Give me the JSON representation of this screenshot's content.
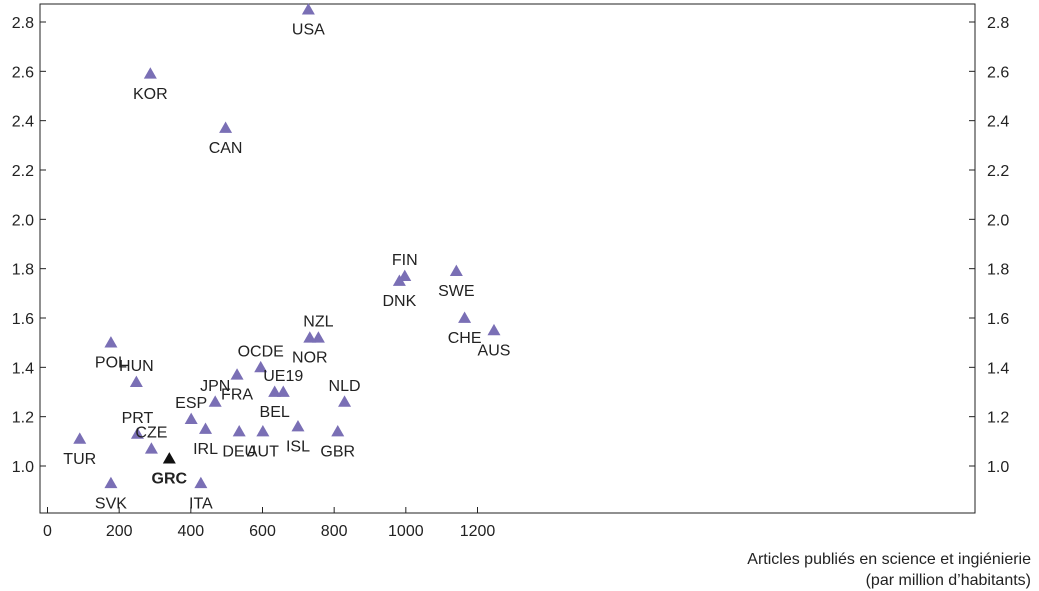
{
  "chart_data": {
    "type": "scatter",
    "xlabel": [
      "Articles publiés en science et ingiénierie",
      "(par million d’habitants)"
    ],
    "ylabel": "",
    "xlim": [
      0,
      1290
    ],
    "ylim": [
      0.8,
      2.9
    ],
    "xticks": [
      "0",
      "200",
      "400",
      "600",
      "800",
      "1000",
      "1200"
    ],
    "yticks": [
      "1.0",
      "1.2",
      "1.4",
      "1.6",
      "1.8",
      "2.0",
      "2.2",
      "2.4",
      "2.6",
      "2.8"
    ],
    "grid": false,
    "colors": {
      "default": "#7a6fb5",
      "highlight": "#111111"
    },
    "points": [
      {
        "label": "USA",
        "x": 728,
        "y": 2.85,
        "pos": "below"
      },
      {
        "label": "KOR",
        "x": 287,
        "y": 2.59,
        "pos": "below"
      },
      {
        "label": "CAN",
        "x": 497,
        "y": 2.37,
        "pos": "below"
      },
      {
        "label": "FIN",
        "x": 997,
        "y": 1.77,
        "pos": "above"
      },
      {
        "label": "DNK",
        "x": 982,
        "y": 1.75,
        "pos": "below"
      },
      {
        "label": "SWE",
        "x": 1141,
        "y": 1.79,
        "pos": "below"
      },
      {
        "label": "CHE",
        "x": 1164,
        "y": 1.6,
        "pos": "below"
      },
      {
        "label": "AUS",
        "x": 1246,
        "y": 1.55,
        "pos": "below"
      },
      {
        "label": "NZL",
        "x": 756,
        "y": 1.52,
        "pos": "above"
      },
      {
        "label": "NOR",
        "x": 732,
        "y": 1.52,
        "pos": "below"
      },
      {
        "label": "POL",
        "x": 177,
        "y": 1.5,
        "pos": "below"
      },
      {
        "label": "OCDE",
        "x": 595,
        "y": 1.4,
        "pos": "above"
      },
      {
        "label": "FRA",
        "x": 529,
        "y": 1.37,
        "pos": "below"
      },
      {
        "label": "HUN",
        "x": 248,
        "y": 1.34,
        "pos": "above"
      },
      {
        "label": "UE19",
        "x": 658,
        "y": 1.3,
        "pos": "above"
      },
      {
        "label": "BEL",
        "x": 634,
        "y": 1.3,
        "pos": "below"
      },
      {
        "label": "NLD",
        "x": 829,
        "y": 1.26,
        "pos": "above"
      },
      {
        "label": "JPN",
        "x": 468,
        "y": 1.26,
        "pos": "above"
      },
      {
        "label": "ESP",
        "x": 401,
        "y": 1.19,
        "pos": "above"
      },
      {
        "label": "ISL",
        "x": 699,
        "y": 1.16,
        "pos": "below"
      },
      {
        "label": "IRL",
        "x": 441,
        "y": 1.15,
        "pos": "below"
      },
      {
        "label": "PRT",
        "x": 251,
        "y": 1.13,
        "pos": "above"
      },
      {
        "label": "DEU",
        "x": 535,
        "y": 1.14,
        "pos": "below"
      },
      {
        "label": "AUT",
        "x": 601,
        "y": 1.14,
        "pos": "below"
      },
      {
        "label": "GBR",
        "x": 810,
        "y": 1.14,
        "pos": "below"
      },
      {
        "label": "TUR",
        "x": 90,
        "y": 1.11,
        "pos": "below"
      },
      {
        "label": "CZE",
        "x": 290,
        "y": 1.07,
        "pos": "above"
      },
      {
        "label": "GRC",
        "x": 340,
        "y": 1.03,
        "pos": "below",
        "highlight": true
      },
      {
        "label": "SVK",
        "x": 177,
        "y": 0.93,
        "pos": "below"
      },
      {
        "label": "ITA",
        "x": 428,
        "y": 0.93,
        "pos": "below"
      }
    ]
  }
}
